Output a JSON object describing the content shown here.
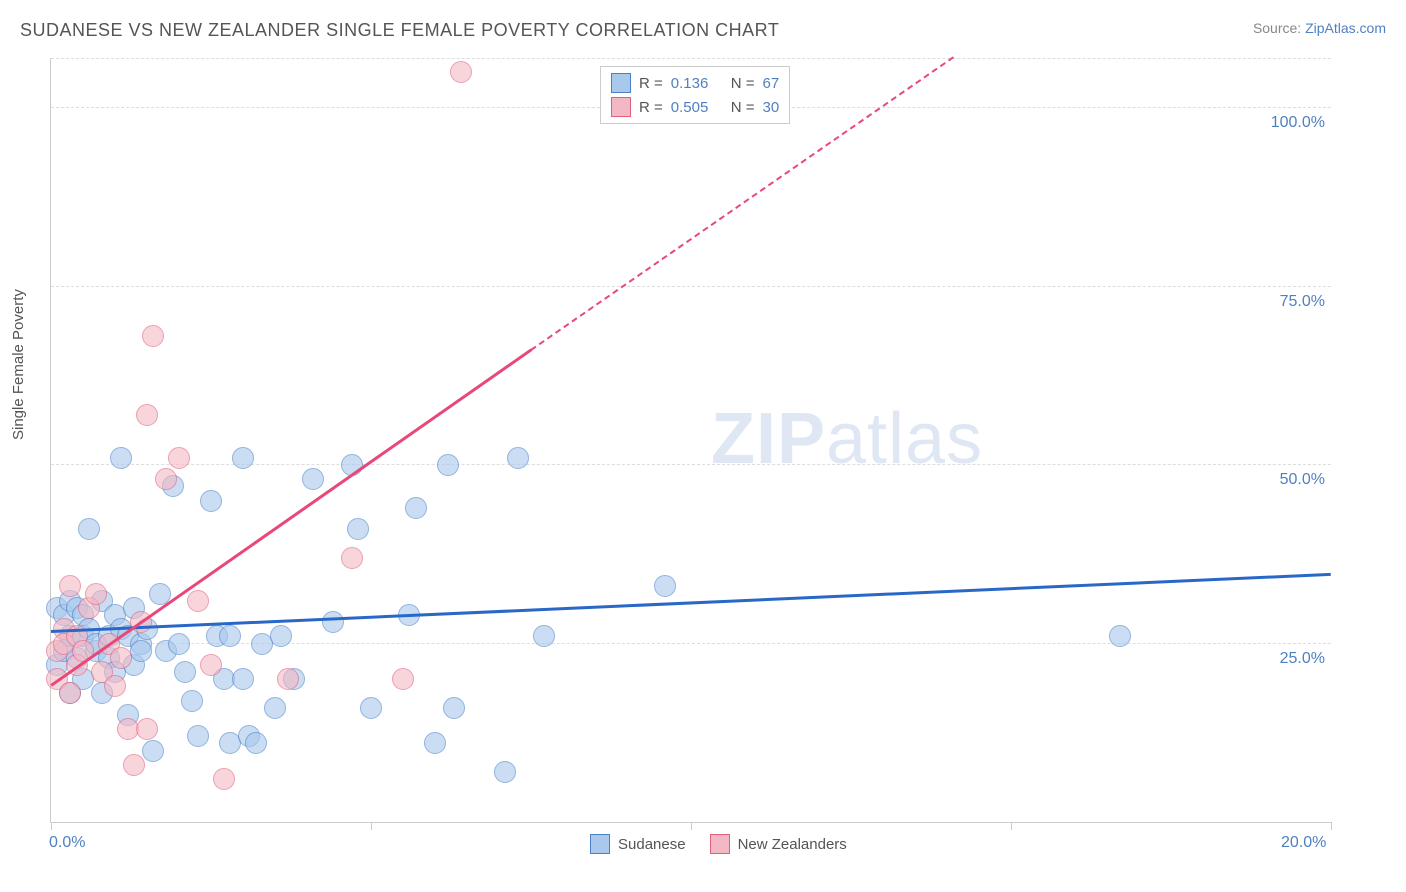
{
  "title": "SUDANESE VS NEW ZEALANDER SINGLE FEMALE POVERTY CORRELATION CHART",
  "source_prefix": "Source: ",
  "source_name": "ZipAtlas.com",
  "y_axis_title": "Single Female Poverty",
  "watermark_a": "ZIP",
  "watermark_b": "atlas",
  "chart": {
    "type": "scatter",
    "background_color": "#ffffff",
    "grid_color": "#dddddd",
    "axis_color": "#cccccc",
    "label_color": "#5080c0",
    "text_color": "#555555",
    "title_fontsize": 18,
    "label_fontsize": 16,
    "axis_title_fontsize": 15,
    "xlim": [
      0,
      20
    ],
    "ylim": [
      0,
      107
    ],
    "y_ticks": [
      25,
      50,
      75,
      100
    ],
    "y_tick_labels": [
      "25.0%",
      "50.0%",
      "75.0%",
      "100.0%"
    ],
    "x_tick_values": [
      0,
      5,
      10,
      15,
      20
    ],
    "x_tick_labels_shown": {
      "0": "0.0%",
      "20": "20.0%"
    },
    "point_radius": 10,
    "point_opacity": 0.6,
    "series": [
      {
        "id": "sudanese",
        "label": "Sudanese",
        "fill": "#a8c8ec",
        "stroke": "#4a80c8",
        "trend_solid_color": "#2a68c8",
        "R": "0.136",
        "N": "67",
        "trend": {
          "x1": 0,
          "y1": 26.5,
          "x2": 20,
          "y2": 34.5
        },
        "points": [
          [
            0.1,
            22
          ],
          [
            0.1,
            30
          ],
          [
            0.2,
            29
          ],
          [
            0.2,
            24
          ],
          [
            0.3,
            31
          ],
          [
            0.3,
            18
          ],
          [
            0.3,
            26
          ],
          [
            0.4,
            30
          ],
          [
            0.4,
            23
          ],
          [
            0.5,
            26
          ],
          [
            0.5,
            20
          ],
          [
            0.5,
            29
          ],
          [
            0.6,
            27
          ],
          [
            0.6,
            41
          ],
          [
            0.7,
            24
          ],
          [
            0.7,
            25
          ],
          [
            0.8,
            31
          ],
          [
            0.8,
            18
          ],
          [
            0.9,
            23
          ],
          [
            0.9,
            26
          ],
          [
            1.0,
            29
          ],
          [
            1.0,
            21
          ],
          [
            1.1,
            27
          ],
          [
            1.1,
            51
          ],
          [
            1.2,
            26
          ],
          [
            1.2,
            15
          ],
          [
            1.3,
            22
          ],
          [
            1.3,
            30
          ],
          [
            1.4,
            25
          ],
          [
            1.4,
            24
          ],
          [
            1.5,
            27
          ],
          [
            1.6,
            10
          ],
          [
            1.7,
            32
          ],
          [
            1.8,
            24
          ],
          [
            1.9,
            47
          ],
          [
            2.0,
            25
          ],
          [
            2.1,
            21
          ],
          [
            2.2,
            17
          ],
          [
            2.3,
            12
          ],
          [
            2.5,
            45
          ],
          [
            2.6,
            26
          ],
          [
            2.7,
            20
          ],
          [
            2.8,
            26
          ],
          [
            2.8,
            11
          ],
          [
            3.0,
            51
          ],
          [
            3.0,
            20
          ],
          [
            3.1,
            12
          ],
          [
            3.3,
            25
          ],
          [
            3.2,
            11
          ],
          [
            3.5,
            16
          ],
          [
            3.6,
            26
          ],
          [
            3.8,
            20
          ],
          [
            4.1,
            48
          ],
          [
            4.4,
            28
          ],
          [
            4.7,
            50
          ],
          [
            4.8,
            41
          ],
          [
            5.0,
            16
          ],
          [
            5.6,
            29
          ],
          [
            5.7,
            44
          ],
          [
            6.2,
            50
          ],
          [
            6.3,
            16
          ],
          [
            7.1,
            7
          ],
          [
            7.3,
            51
          ],
          [
            7.7,
            26
          ],
          [
            9.6,
            33
          ],
          [
            16.7,
            26
          ],
          [
            6.0,
            11
          ]
        ]
      },
      {
        "id": "newzealanders",
        "label": "New Zealanders",
        "fill": "#f4b8c4",
        "stroke": "#e06080",
        "trend_solid_color": "#e84878",
        "R": "0.505",
        "N": "30",
        "trend_solid": {
          "x1": 0,
          "y1": 19,
          "x2": 7.5,
          "y2": 66
        },
        "trend_dash": {
          "x1": 7.5,
          "y1": 66,
          "x2": 14.1,
          "y2": 107
        },
        "points": [
          [
            0.1,
            20
          ],
          [
            0.1,
            24
          ],
          [
            0.2,
            27
          ],
          [
            0.2,
            25
          ],
          [
            0.3,
            33
          ],
          [
            0.3,
            18
          ],
          [
            0.4,
            22
          ],
          [
            0.4,
            26
          ],
          [
            0.5,
            24
          ],
          [
            0.6,
            30
          ],
          [
            0.7,
            32
          ],
          [
            0.8,
            21
          ],
          [
            0.9,
            25
          ],
          [
            1.0,
            19
          ],
          [
            1.1,
            23
          ],
          [
            1.2,
            13
          ],
          [
            1.3,
            8
          ],
          [
            1.4,
            28
          ],
          [
            1.5,
            13
          ],
          [
            1.5,
            57
          ],
          [
            1.6,
            68
          ],
          [
            1.8,
            48
          ],
          [
            2.0,
            51
          ],
          [
            2.3,
            31
          ],
          [
            2.5,
            22
          ],
          [
            2.7,
            6
          ],
          [
            3.7,
            20
          ],
          [
            4.7,
            37
          ],
          [
            5.5,
            20
          ],
          [
            6.4,
            105
          ]
        ]
      }
    ]
  },
  "stats_legend": {
    "rows": [
      {
        "swatch_fill": "#a8c8ec",
        "swatch_stroke": "#4a80c8",
        "r_label": "R =",
        "r_val": "0.136",
        "n_label": "N =",
        "n_val": "67"
      },
      {
        "swatch_fill": "#f4b8c4",
        "swatch_stroke": "#e06080",
        "r_label": "R =",
        "r_val": "0.505",
        "n_label": "N =",
        "n_val": "30"
      }
    ]
  },
  "bottom_legend": {
    "items": [
      {
        "swatch_fill": "#a8c8ec",
        "swatch_stroke": "#4a80c8",
        "label": "Sudanese"
      },
      {
        "swatch_fill": "#f4b8c4",
        "swatch_stroke": "#e06080",
        "label": "New Zealanders"
      }
    ]
  }
}
